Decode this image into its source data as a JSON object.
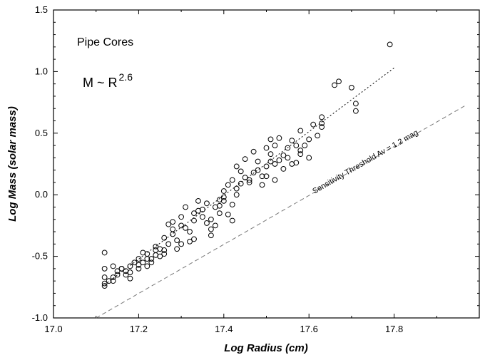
{
  "chart_data": {
    "type": "scatter",
    "title": "",
    "xlabel": "Log Radius (cm)",
    "ylabel": "Log Mass (solar mass)",
    "xlim": [
      17.0,
      18.0
    ],
    "ylim": [
      -1.0,
      1.5
    ],
    "xticks": [
      "17.0",
      "17.2",
      "17.4",
      "17.6",
      "17.8"
    ],
    "xtick_values": [
      17.0,
      17.2,
      17.4,
      17.6,
      17.8
    ],
    "yticks": [
      "-1.0",
      "-0.5",
      "0.0",
      "0.5",
      "1.0",
      "1.5"
    ],
    "ytick_values": [
      -1.0,
      -0.5,
      0.0,
      0.5,
      1.0,
      1.5
    ],
    "grid": false,
    "marker": "open-circle",
    "colors": {
      "marker": "#000000",
      "fit_line": "#000000",
      "threshold_line": "#777777"
    },
    "annotations": {
      "label": "Pipe Cores",
      "relation_base": "M ~ R",
      "relation_exp": "2.6",
      "threshold": "Sensitivity Threshold Av = 1.2 mag"
    },
    "fit_line": {
      "style": "dotted",
      "x": [
        17.12,
        17.8
      ],
      "y": [
        -0.73,
        1.03
      ]
    },
    "threshold_line": {
      "style": "dashed",
      "x": [
        17.1,
        17.97
      ],
      "y": [
        -1.0,
        0.73
      ]
    },
    "points": [
      {
        "x": 17.12,
        "y": -0.47
      },
      {
        "x": 17.12,
        "y": -0.67
      },
      {
        "x": 17.12,
        "y": -0.72
      },
      {
        "x": 17.12,
        "y": -0.74
      },
      {
        "x": 17.13,
        "y": -0.7
      },
      {
        "x": 17.14,
        "y": -0.58
      },
      {
        "x": 17.14,
        "y": -0.67
      },
      {
        "x": 17.15,
        "y": -0.62
      },
      {
        "x": 17.15,
        "y": -0.65
      },
      {
        "x": 17.16,
        "y": -0.6
      },
      {
        "x": 17.16,
        "y": -0.6
      },
      {
        "x": 17.17,
        "y": -0.62
      },
      {
        "x": 17.17,
        "y": -0.65
      },
      {
        "x": 17.18,
        "y": -0.58
      },
      {
        "x": 17.18,
        "y": -0.68
      },
      {
        "x": 17.19,
        "y": -0.55
      },
      {
        "x": 17.2,
        "y": -0.52
      },
      {
        "x": 17.2,
        "y": -0.57
      },
      {
        "x": 17.21,
        "y": -0.47
      },
      {
        "x": 17.21,
        "y": -0.55
      },
      {
        "x": 17.22,
        "y": -0.48
      },
      {
        "x": 17.22,
        "y": -0.52
      },
      {
        "x": 17.23,
        "y": -0.52
      },
      {
        "x": 17.23,
        "y": -0.55
      },
      {
        "x": 17.24,
        "y": -0.49
      },
      {
        "x": 17.24,
        "y": -0.45
      },
      {
        "x": 17.25,
        "y": -0.44
      },
      {
        "x": 17.25,
        "y": -0.5
      },
      {
        "x": 17.26,
        "y": -0.45
      },
      {
        "x": 17.26,
        "y": -0.48
      },
      {
        "x": 17.27,
        "y": -0.4
      },
      {
        "x": 17.27,
        "y": -0.24
      },
      {
        "x": 17.28,
        "y": -0.22
      },
      {
        "x": 17.28,
        "y": -0.32
      },
      {
        "x": 17.29,
        "y": -0.37
      },
      {
        "x": 17.29,
        "y": -0.44
      },
      {
        "x": 17.3,
        "y": -0.4
      },
      {
        "x": 17.3,
        "y": -0.18
      },
      {
        "x": 17.31,
        "y": -0.27
      },
      {
        "x": 17.32,
        "y": -0.3
      },
      {
        "x": 17.32,
        "y": -0.38
      },
      {
        "x": 17.33,
        "y": -0.36
      },
      {
        "x": 17.33,
        "y": -0.21
      },
      {
        "x": 17.34,
        "y": -0.05
      },
      {
        "x": 17.34,
        "y": -0.13
      },
      {
        "x": 17.35,
        "y": -0.18
      },
      {
        "x": 17.36,
        "y": -0.23
      },
      {
        "x": 17.36,
        "y": -0.07
      },
      {
        "x": 17.37,
        "y": -0.28
      },
      {
        "x": 17.37,
        "y": -0.33
      },
      {
        "x": 17.38,
        "y": -0.25
      },
      {
        "x": 17.38,
        "y": -0.1
      },
      {
        "x": 17.39,
        "y": -0.15
      },
      {
        "x": 17.39,
        "y": -0.04
      },
      {
        "x": 17.4,
        "y": -0.05
      },
      {
        "x": 17.4,
        "y": 0.03
      },
      {
        "x": 17.41,
        "y": 0.08
      },
      {
        "x": 17.41,
        "y": -0.16
      },
      {
        "x": 17.42,
        "y": 0.12
      },
      {
        "x": 17.42,
        "y": -0.21
      },
      {
        "x": 17.43,
        "y": 0.05
      },
      {
        "x": 17.43,
        "y": 0.0
      },
      {
        "x": 17.44,
        "y": 0.19
      },
      {
        "x": 17.44,
        "y": 0.09
      },
      {
        "x": 17.45,
        "y": 0.14
      },
      {
        "x": 17.45,
        "y": 0.29
      },
      {
        "x": 17.46,
        "y": 0.1
      },
      {
        "x": 17.46,
        "y": 0.12
      },
      {
        "x": 17.47,
        "y": 0.35
      },
      {
        "x": 17.47,
        "y": 0.18
      },
      {
        "x": 17.48,
        "y": 0.2
      },
      {
        "x": 17.48,
        "y": 0.27
      },
      {
        "x": 17.49,
        "y": 0.15
      },
      {
        "x": 17.49,
        "y": 0.08
      },
      {
        "x": 17.5,
        "y": 0.23
      },
      {
        "x": 17.5,
        "y": 0.38
      },
      {
        "x": 17.51,
        "y": 0.33
      },
      {
        "x": 17.51,
        "y": 0.45
      },
      {
        "x": 17.52,
        "y": 0.25
      },
      {
        "x": 17.52,
        "y": 0.4
      },
      {
        "x": 17.53,
        "y": 0.28
      },
      {
        "x": 17.53,
        "y": 0.46
      },
      {
        "x": 17.54,
        "y": 0.32
      },
      {
        "x": 17.54,
        "y": 0.21
      },
      {
        "x": 17.55,
        "y": 0.38
      },
      {
        "x": 17.55,
        "y": 0.3
      },
      {
        "x": 17.56,
        "y": 0.44
      },
      {
        "x": 17.56,
        "y": 0.25
      },
      {
        "x": 17.57,
        "y": 0.26
      },
      {
        "x": 17.57,
        "y": 0.4
      },
      {
        "x": 17.58,
        "y": 0.33
      },
      {
        "x": 17.58,
        "y": 0.52
      },
      {
        "x": 17.59,
        "y": 0.4
      },
      {
        "x": 17.6,
        "y": 0.45
      },
      {
        "x": 17.61,
        "y": 0.57
      },
      {
        "x": 17.62,
        "y": 0.48
      },
      {
        "x": 17.63,
        "y": 0.63
      },
      {
        "x": 17.63,
        "y": 0.55
      },
      {
        "x": 17.12,
        "y": -0.6
      },
      {
        "x": 17.14,
        "y": -0.7
      },
      {
        "x": 17.18,
        "y": -0.63
      },
      {
        "x": 17.2,
        "y": -0.6
      },
      {
        "x": 17.22,
        "y": -0.58
      },
      {
        "x": 17.24,
        "y": -0.42
      },
      {
        "x": 17.26,
        "y": -0.35
      },
      {
        "x": 17.28,
        "y": -0.28
      },
      {
        "x": 17.3,
        "y": -0.25
      },
      {
        "x": 17.31,
        "y": -0.1
      },
      {
        "x": 17.33,
        "y": -0.15
      },
      {
        "x": 17.35,
        "y": -0.12
      },
      {
        "x": 17.37,
        "y": -0.2
      },
      {
        "x": 17.39,
        "y": -0.09
      },
      {
        "x": 17.4,
        "y": -0.02
      },
      {
        "x": 17.42,
        "y": -0.08
      },
      {
        "x": 17.43,
        "y": 0.23
      },
      {
        "x": 17.5,
        "y": 0.15
      },
      {
        "x": 17.51,
        "y": 0.27
      },
      {
        "x": 17.52,
        "y": 0.12
      },
      {
        "x": 17.58,
        "y": 0.36
      },
      {
        "x": 17.6,
        "y": 0.3
      },
      {
        "x": 17.63,
        "y": 0.58
      },
      {
        "x": 17.66,
        "y": 0.89
      },
      {
        "x": 17.67,
        "y": 0.92
      },
      {
        "x": 17.7,
        "y": 0.87
      },
      {
        "x": 17.71,
        "y": 0.68
      },
      {
        "x": 17.71,
        "y": 0.74
      },
      {
        "x": 17.79,
        "y": 1.22
      }
    ]
  }
}
